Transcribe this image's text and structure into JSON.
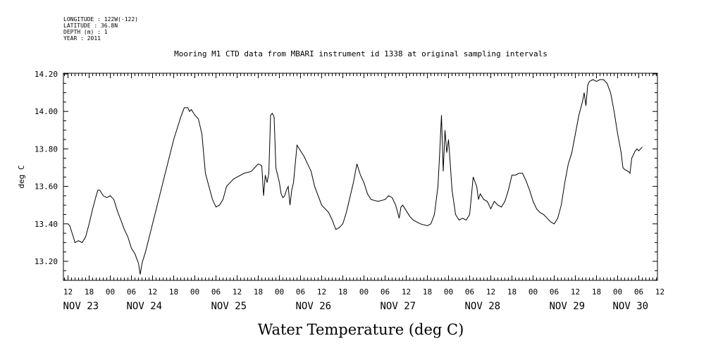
{
  "header": {
    "longitude": "LONGITUDE : 122W(-122)",
    "latitude": "LATITUDE : 36.8N",
    "depth": "DEPTH (m) : 1",
    "year": "YEAR : 2011"
  },
  "chart_data": {
    "type": "line",
    "title": "Mooring M1 CTD data from MBARI instrument id 1338 at original sampling intervals",
    "xlabel": "Water Temperature (deg C)",
    "ylabel": "deg C",
    "ylim": [
      13.1,
      14.2
    ],
    "yticks": [
      "13.20",
      "13.40",
      "13.60",
      "13.80",
      "14.00",
      "14.20"
    ],
    "xrange_hours": [
      0,
      168
    ],
    "hour_ticks": [
      "12",
      "18",
      "00",
      "06",
      "12",
      "18",
      "00",
      "06",
      "12",
      "18",
      "00",
      "06",
      "12",
      "18",
      "00",
      "06",
      "12",
      "18",
      "00",
      "06",
      "12",
      "18",
      "00",
      "06",
      "12",
      "18",
      "00",
      "06",
      "12"
    ],
    "day_labels": [
      {
        "label": "NOV 23",
        "hour": 0
      },
      {
        "label": "NOV 24",
        "hour": 18
      },
      {
        "label": "NOV 25",
        "hour": 42
      },
      {
        "label": "NOV 26",
        "hour": 66
      },
      {
        "label": "NOV 27",
        "hour": 90
      },
      {
        "label": "NOV 28",
        "hour": 114
      },
      {
        "label": "NOV 29",
        "hour": 138
      },
      {
        "label": "NOV 30",
        "hour": 156
      }
    ],
    "grid": false,
    "series": [
      {
        "values": [
          [
            0,
            13.4
          ],
          [
            0.5,
            13.39
          ],
          [
            1,
            13.36
          ],
          [
            1.5,
            13.33
          ],
          [
            2,
            13.3
          ],
          [
            3,
            13.31
          ],
          [
            4,
            13.3
          ],
          [
            5,
            13.33
          ],
          [
            6,
            13.4
          ],
          [
            7,
            13.48
          ],
          [
            8,
            13.55
          ],
          [
            8.5,
            13.58
          ],
          [
            9,
            13.58
          ],
          [
            10,
            13.55
          ],
          [
            11,
            13.54
          ],
          [
            12,
            13.55
          ],
          [
            13,
            13.53
          ],
          [
            14,
            13.47
          ],
          [
            15,
            13.42
          ],
          [
            16,
            13.37
          ],
          [
            17,
            13.33
          ],
          [
            18,
            13.27
          ],
          [
            19,
            13.24
          ],
          [
            20,
            13.19
          ],
          [
            20.5,
            13.13
          ],
          [
            21,
            13.19
          ],
          [
            22,
            13.25
          ],
          [
            24,
            13.4
          ],
          [
            26,
            13.55
          ],
          [
            28,
            13.7
          ],
          [
            30,
            13.85
          ],
          [
            32,
            13.97
          ],
          [
            33,
            14.02
          ],
          [
            34,
            14.02
          ],
          [
            34.5,
            14.0
          ],
          [
            35,
            14.01
          ],
          [
            36,
            13.98
          ],
          [
            37,
            13.96
          ],
          [
            38,
            13.88
          ],
          [
            39,
            13.67
          ],
          [
            40,
            13.6
          ],
          [
            41,
            13.53
          ],
          [
            42,
            13.49
          ],
          [
            43,
            13.5
          ],
          [
            44,
            13.53
          ],
          [
            45,
            13.6
          ],
          [
            46,
            13.62
          ],
          [
            47,
            13.64
          ],
          [
            48,
            13.65
          ],
          [
            50,
            13.67
          ],
          [
            52,
            13.68
          ],
          [
            53,
            13.7
          ],
          [
            54,
            13.72
          ],
          [
            55,
            13.71
          ],
          [
            55.5,
            13.55
          ],
          [
            56,
            13.66
          ],
          [
            56.5,
            13.62
          ],
          [
            57,
            13.67
          ],
          [
            57.5,
            13.98
          ],
          [
            58,
            13.99
          ],
          [
            58.5,
            13.97
          ],
          [
            59,
            13.7
          ],
          [
            60,
            13.62
          ],
          [
            60.5,
            13.56
          ],
          [
            61,
            13.54
          ],
          [
            61.5,
            13.55
          ],
          [
            62,
            13.58
          ],
          [
            62.5,
            13.6
          ],
          [
            63,
            13.5
          ],
          [
            63.5,
            13.58
          ],
          [
            64,
            13.62
          ],
          [
            65,
            13.82
          ],
          [
            66,
            13.79
          ],
          [
            67,
            13.76
          ],
          [
            68,
            13.72
          ],
          [
            69,
            13.68
          ],
          [
            70,
            13.6
          ],
          [
            71,
            13.55
          ],
          [
            72,
            13.5
          ],
          [
            74,
            13.46
          ],
          [
            75,
            13.42
          ],
          [
            76,
            13.37
          ],
          [
            77,
            13.38
          ],
          [
            78,
            13.4
          ],
          [
            79,
            13.46
          ],
          [
            80,
            13.54
          ],
          [
            81,
            13.62
          ],
          [
            82,
            13.72
          ],
          [
            83,
            13.66
          ],
          [
            84,
            13.62
          ],
          [
            85,
            13.56
          ],
          [
            86,
            13.53
          ],
          [
            88,
            13.52
          ],
          [
            90,
            13.53
          ],
          [
            91,
            13.55
          ],
          [
            92,
            13.54
          ],
          [
            93,
            13.5
          ],
          [
            94,
            13.43
          ],
          [
            94.5,
            13.49
          ],
          [
            95,
            13.5
          ],
          [
            96,
            13.47
          ],
          [
            97,
            13.44
          ],
          [
            98,
            13.42
          ],
          [
            100,
            13.4
          ],
          [
            102,
            13.39
          ],
          [
            103,
            13.4
          ],
          [
            104,
            13.45
          ],
          [
            105,
            13.6
          ],
          [
            105.5,
            13.78
          ],
          [
            106,
            13.98
          ],
          [
            106.5,
            13.68
          ],
          [
            107,
            13.9
          ],
          [
            107.5,
            13.78
          ],
          [
            108,
            13.85
          ],
          [
            108.5,
            13.72
          ],
          [
            109,
            13.58
          ],
          [
            110,
            13.45
          ],
          [
            111,
            13.42
          ],
          [
            112,
            13.43
          ],
          [
            113,
            13.42
          ],
          [
            114,
            13.45
          ],
          [
            115,
            13.65
          ],
          [
            116,
            13.6
          ],
          [
            116.5,
            13.53
          ],
          [
            117,
            13.56
          ],
          [
            118,
            13.53
          ],
          [
            119,
            13.52
          ],
          [
            120,
            13.48
          ],
          [
            121,
            13.52
          ],
          [
            122,
            13.5
          ],
          [
            123,
            13.49
          ],
          [
            124,
            13.52
          ],
          [
            125,
            13.58
          ],
          [
            126,
            13.66
          ],
          [
            127,
            13.66
          ],
          [
            128,
            13.67
          ],
          [
            129,
            13.67
          ],
          [
            130,
            13.63
          ],
          [
            131,
            13.58
          ],
          [
            132,
            13.52
          ],
          [
            133,
            13.48
          ],
          [
            134,
            13.46
          ],
          [
            135,
            13.45
          ],
          [
            136,
            13.43
          ],
          [
            137,
            13.41
          ],
          [
            138,
            13.4
          ],
          [
            139,
            13.43
          ],
          [
            140,
            13.5
          ],
          [
            141,
            13.62
          ],
          [
            142,
            13.72
          ],
          [
            143,
            13.78
          ],
          [
            144,
            13.88
          ],
          [
            145,
            13.98
          ],
          [
            146,
            14.05
          ],
          [
            146.5,
            14.1
          ],
          [
            147,
            14.03
          ],
          [
            147.5,
            14.14
          ],
          [
            148,
            14.16
          ],
          [
            149,
            14.17
          ],
          [
            150,
            14.16
          ],
          [
            151,
            14.17
          ],
          [
            152,
            14.17
          ],
          [
            153,
            14.15
          ],
          [
            154,
            14.1
          ],
          [
            155,
            14.0
          ],
          [
            156,
            13.88
          ],
          [
            157,
            13.78
          ],
          [
            157.5,
            13.7
          ],
          [
            158,
            13.69
          ],
          [
            159,
            13.68
          ],
          [
            159.5,
            13.67
          ],
          [
            160,
            13.75
          ],
          [
            161,
            13.79
          ],
          [
            161.5,
            13.8
          ],
          [
            162,
            13.79
          ],
          [
            163,
            13.81
          ]
        ]
      }
    ]
  }
}
